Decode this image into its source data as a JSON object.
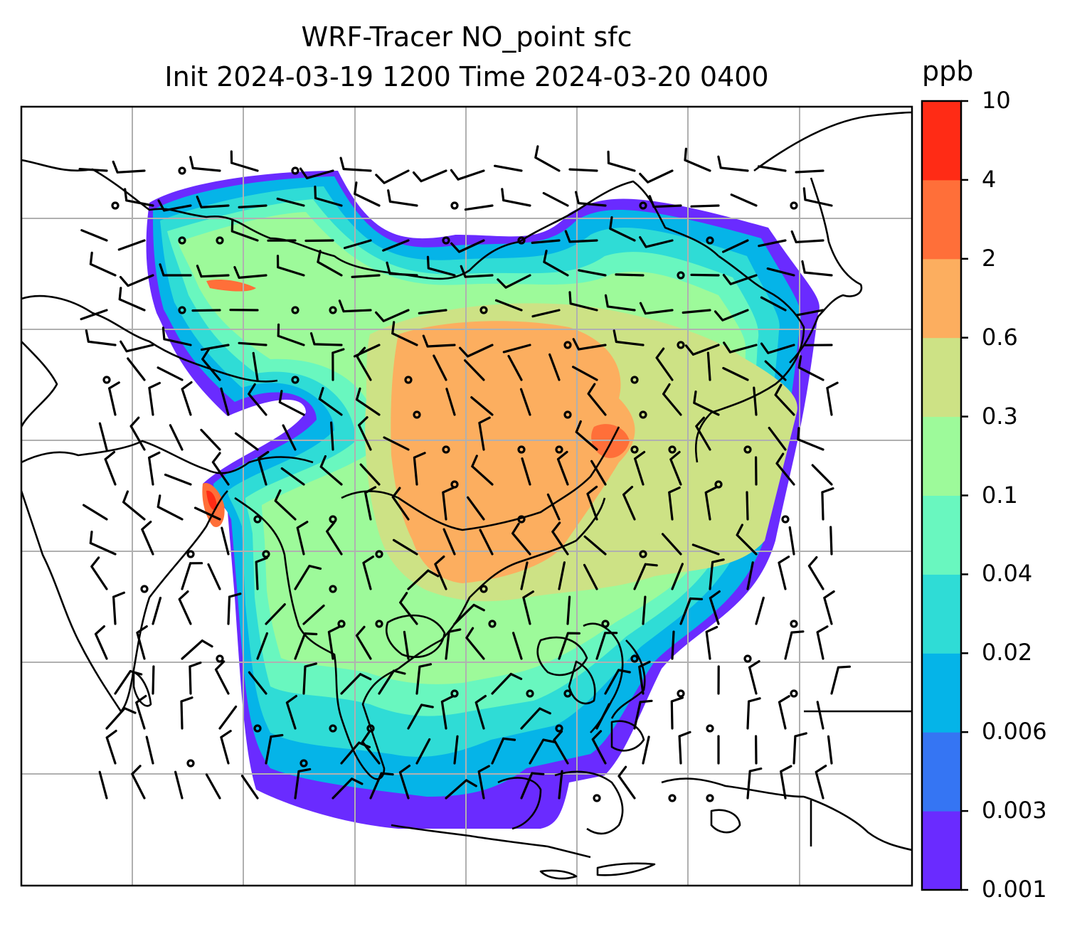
{
  "title": {
    "line1": "WRF-Tracer NO_point sfc",
    "line2": "Init 2024-03-19 1200 Time 2024-03-20 0400"
  },
  "colorbar": {
    "unit": "ppb",
    "levels": [
      "0.001",
      "0.003",
      "0.006",
      "0.02",
      "0.04",
      "0.1",
      "0.3",
      "0.6",
      "2",
      "4",
      "10"
    ],
    "colors": [
      "#6a2bff",
      "#3575f3",
      "#05b4e8",
      "#2fdcd6",
      "#69f7bf",
      "#9dfa9a",
      "#cde285",
      "#fcae5f",
      "#ff6f39",
      "#ff2b15"
    ]
  },
  "map": {
    "field": "NO_point surface tracer concentration",
    "coastline_color": "#000000",
    "gridline_color": "#b0b0b0",
    "overlay": "wind barbs"
  }
}
